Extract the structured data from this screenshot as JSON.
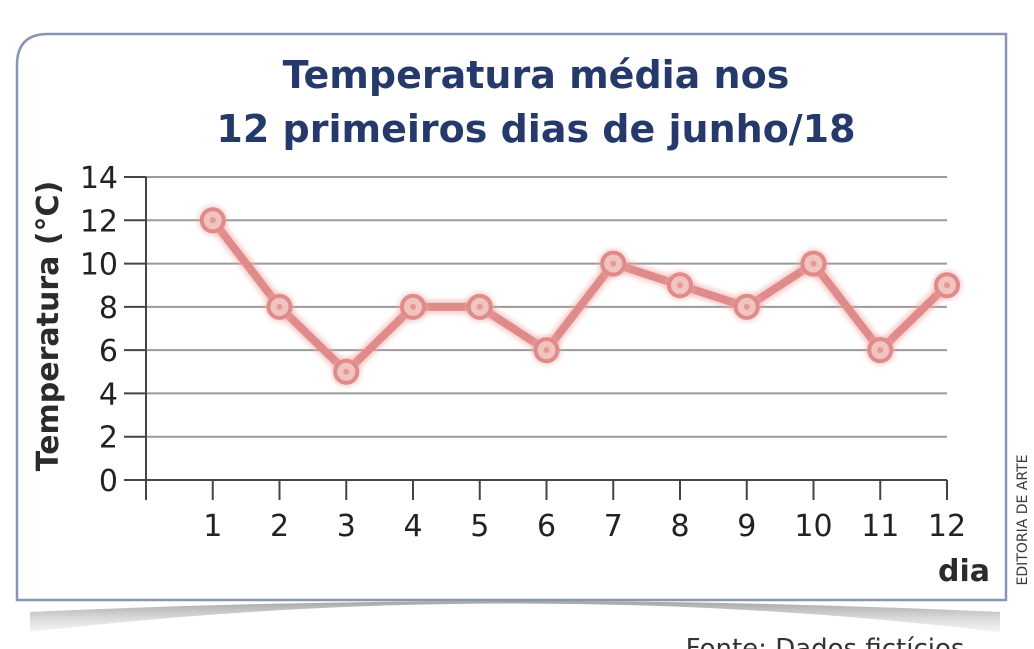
{
  "chart_data": {
    "type": "line",
    "title_lines": [
      "Temperatura média nos",
      "12 primeiros dias de junho/18"
    ],
    "xlabel": "dia",
    "ylabel": "Temperatura (°C)",
    "x": [
      1,
      2,
      3,
      4,
      5,
      6,
      7,
      8,
      9,
      10,
      11,
      12
    ],
    "values": [
      12,
      8,
      5,
      8,
      8,
      6,
      10,
      9,
      8,
      10,
      6,
      9
    ],
    "xlim": [
      0,
      12
    ],
    "ylim": [
      0,
      14
    ],
    "yticks": [
      0,
      2,
      4,
      6,
      8,
      10,
      12,
      14
    ],
    "xticks": [
      1,
      2,
      3,
      4,
      5,
      6,
      7,
      8,
      9,
      10,
      11,
      12
    ],
    "grid": true,
    "line_color": "#e08b8b",
    "marker_color": "#f2c4c0"
  },
  "credit": "EDITORIA DE ARTE",
  "source": "Fonte: Dados fictícios",
  "colors": {
    "frame": "#8a93b8",
    "title": "#253a6b",
    "grid": "#9a9a9a"
  }
}
